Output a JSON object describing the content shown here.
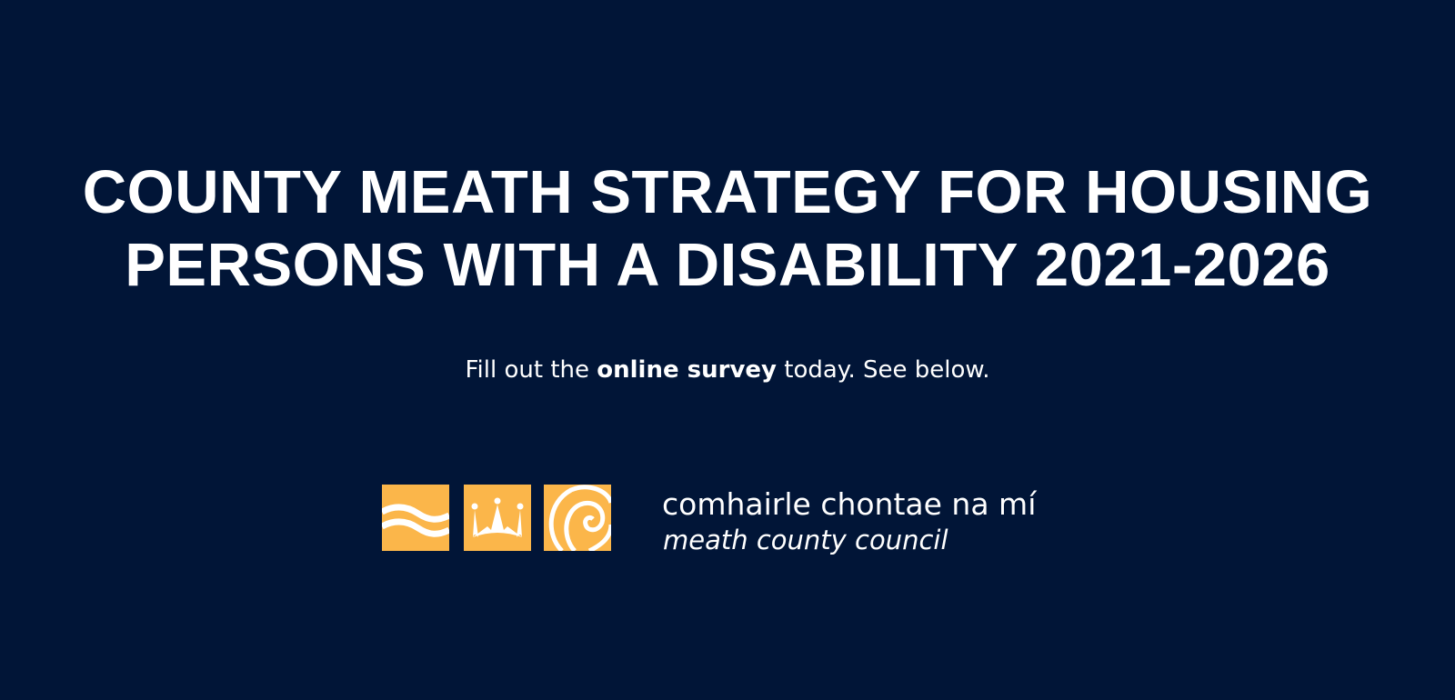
{
  "title": {
    "line1": "COUNTY MEATH STRATEGY FOR HOUSING",
    "line2": "PERSONS WITH A DISABILITY 2021-2026"
  },
  "subtitle": {
    "before": "Fill out the ",
    "emphasis": "online survey",
    "after": " today. See below."
  },
  "logo": {
    "icons": [
      "waves-icon",
      "crown-icon",
      "spiral-icon"
    ],
    "irish_name": "comhairle chontae na mí",
    "english_name": "meath county council",
    "box_color": "#fbb64a"
  },
  "colors": {
    "background": "#011537",
    "text": "#ffffff"
  }
}
